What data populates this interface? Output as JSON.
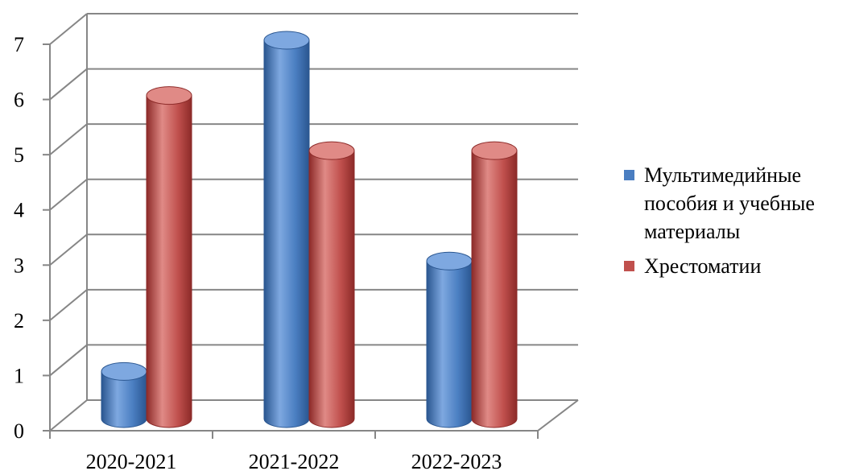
{
  "colors": {
    "series1": "#4a7ec1",
    "series1_light": "#7ea8e0",
    "series1_dark": "#2a5690",
    "series2": "#c0504d",
    "series2_light": "#e08a86",
    "series2_dark": "#8c2a28"
  },
  "chart_data": {
    "type": "bar",
    "three_d": true,
    "shape": "cylinder",
    "categories": [
      "2020-2021",
      "2021-2022",
      "2022-2023"
    ],
    "series": [
      {
        "name": "Мультимедийные пособия и учебные материалы",
        "values": [
          1,
          7,
          3
        ]
      },
      {
        "name": "Хрестоматии",
        "values": [
          6,
          5,
          5
        ]
      }
    ],
    "ylim": [
      0,
      7
    ],
    "yticks": [
      "0",
      "1",
      "2",
      "3",
      "4",
      "5",
      "6",
      "7"
    ],
    "grid": true,
    "legend_position": "right"
  },
  "legend": {
    "item1": "Мультимедийные пособия и учебные материалы",
    "item2": "Хрестоматии"
  }
}
